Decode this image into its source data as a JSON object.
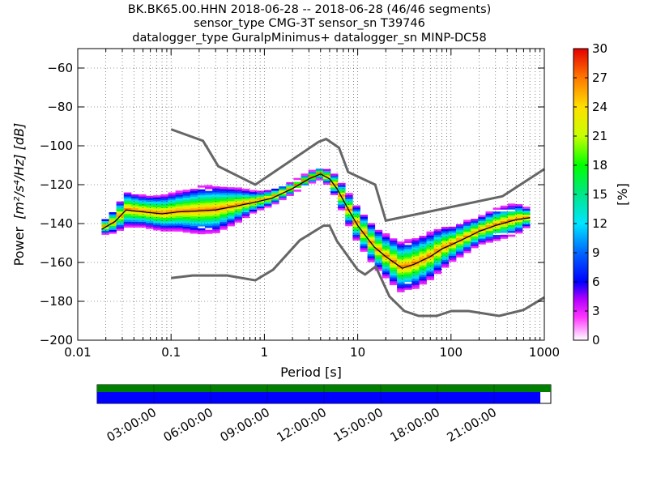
{
  "chart_data": {
    "type": "heatmap",
    "title_lines": [
      "BK.BK65.00.HHN   2018-06-28 -- 2018-06-28  (46/46 segments)",
      "sensor_type CMG-3T sensor_sn T39746",
      "datalogger_type GuralpMinimus+ datalogger_sn MINP-DC58"
    ],
    "xlabel": "Period [s]",
    "ylabel_prefix": "Power",
    "ylabel_units": "[m²/s⁴/Hz] [dB]",
    "xscale": "log",
    "xlim": [
      0.01,
      1000
    ],
    "ylim": [
      -200,
      -50
    ],
    "xticks": [
      {
        "v": 0.01,
        "label": "0.01"
      },
      {
        "v": 0.1,
        "label": "0.1"
      },
      {
        "v": 1,
        "label": "1"
      },
      {
        "v": 10,
        "label": "10"
      },
      {
        "v": 100,
        "label": "100"
      },
      {
        "v": 1000,
        "label": "1000"
      }
    ],
    "yticks": [
      {
        "v": -60,
        "label": "−60"
      },
      {
        "v": -80,
        "label": "−80"
      },
      {
        "v": -100,
        "label": "−100"
      },
      {
        "v": -120,
        "label": "−120"
      },
      {
        "v": -140,
        "label": "−140"
      },
      {
        "v": -160,
        "label": "−160"
      },
      {
        "v": -180,
        "label": "−180"
      },
      {
        "v": -200,
        "label": "−200"
      }
    ],
    "grid": true,
    "colorbar": {
      "label": "[%]",
      "min": 0,
      "max": 30,
      "ticks": [
        {
          "v": 0,
          "label": "0"
        },
        {
          "v": 3,
          "label": "3"
        },
        {
          "v": 6,
          "label": "6"
        },
        {
          "v": 9,
          "label": "9"
        },
        {
          "v": 12,
          "label": "12"
        },
        {
          "v": 15,
          "label": "15"
        },
        {
          "v": 18,
          "label": "18"
        },
        {
          "v": 21,
          "label": "21"
        },
        {
          "v": 24,
          "label": "24"
        },
        {
          "v": 27,
          "label": "27"
        },
        {
          "v": 30,
          "label": "30"
        }
      ]
    },
    "noise_models": [
      {
        "name": "NHNM",
        "x": [
          0.1,
          0.22,
          0.32,
          0.8,
          3.8,
          4.6,
          6.3,
          7.9,
          15.4,
          20,
          354.8,
          1000
        ],
        "y": [
          -91.5,
          -97.4,
          -110.5,
          -120,
          -98,
          -96.5,
          -101,
          -113.5,
          -120,
          -138.5,
          -126,
          -112
        ]
      },
      {
        "name": "NLNM",
        "x": [
          0.1,
          0.17,
          0.4,
          0.8,
          1.24,
          2.4,
          4.3,
          5,
          6,
          10,
          12,
          15.6,
          21.9,
          31.6,
          45,
          70,
          101,
          154,
          328,
          600,
          1000
        ],
        "y": [
          -168,
          -166.7,
          -166.7,
          -169.2,
          -163.7,
          -148.6,
          -141.1,
          -141.1,
          -149,
          -163.8,
          -166.2,
          -162.1,
          -177.5,
          -185,
          -187.5,
          -187.5,
          -185,
          -185,
          -187.5,
          -184.4,
          -178
        ]
      }
    ],
    "mode_curve": {
      "x": [
        0.018,
        0.025,
        0.033,
        0.05,
        0.08,
        0.12,
        0.2,
        0.3,
        0.5,
        0.8,
        1.2,
        2,
        3,
        4,
        5,
        6,
        8,
        10,
        15,
        20,
        30,
        40,
        60,
        80,
        100,
        150,
        200,
        300,
        500,
        700
      ],
      "y": [
        -143,
        -139,
        -133,
        -134,
        -135,
        -134,
        -133.5,
        -133,
        -131,
        -129,
        -127,
        -122,
        -117,
        -114.5,
        -117,
        -122,
        -133,
        -141,
        -152,
        -157,
        -163,
        -161,
        -157,
        -153,
        -151,
        -147,
        -144,
        -141,
        -138,
        -137
      ]
    },
    "density": {
      "x_centers": [
        0.018,
        0.025,
        0.033,
        0.05,
        0.08,
        0.12,
        0.2,
        0.3,
        0.5,
        0.8,
        1.2,
        2,
        3,
        4,
        5,
        6,
        8,
        10,
        15,
        20,
        30,
        40,
        60,
        80,
        100,
        150,
        200,
        300,
        500,
        700
      ],
      "spread_db": [
        3,
        6,
        9,
        8,
        9,
        10,
        12,
        12,
        9,
        5,
        4,
        3,
        3,
        3,
        4,
        6,
        8,
        9,
        10,
        11,
        13,
        13,
        12,
        11,
        9,
        8,
        7,
        8,
        8,
        4
      ]
    }
  },
  "timeline": {
    "labels": [
      "03:00:00",
      "06:00:00",
      "09:00:00",
      "12:00:00",
      "15:00:00",
      "18:00:00",
      "21:00:00"
    ],
    "coverage_fraction": 0.977,
    "colors": {
      "top_bar": "#008000",
      "bottom_bar": "#0000ff"
    }
  }
}
